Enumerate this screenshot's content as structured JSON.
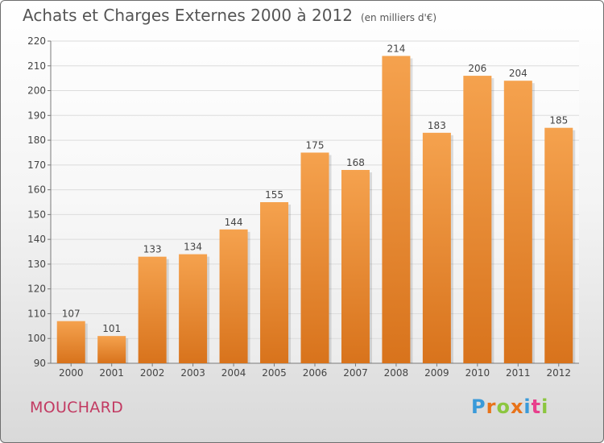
{
  "title": "Achats et Charges Externes 2000 à 2012",
  "unit": "(en milliers d'€)",
  "commune": "MOUCHARD",
  "logo": {
    "letters": [
      "P",
      "r",
      "o",
      "x",
      "i",
      "t",
      "i"
    ],
    "colors": [
      "#3a9ad9",
      "#e8731a",
      "#8cc63f",
      "#e8731a",
      "#3a9ad9",
      "#e83f8c",
      "#8cc63f"
    ]
  },
  "colors": {
    "bar_top": "#f5a24e",
    "bar_bottom": "#d8731c",
    "grid": "#dcdcdc",
    "axis": "#7a7a7a",
    "text": "#444444"
  },
  "chart_data": {
    "type": "bar",
    "title": "Achats et Charges Externes 2000 à 2012",
    "ylabel": "",
    "xlabel": "",
    "categories": [
      "2000",
      "2001",
      "2002",
      "2003",
      "2004",
      "2005",
      "2006",
      "2007",
      "2008",
      "2009",
      "2010",
      "2011",
      "2012"
    ],
    "values": [
      107,
      101,
      133,
      134,
      144,
      155,
      175,
      168,
      214,
      183,
      206,
      204,
      185
    ],
    "ylim": [
      90,
      220
    ],
    "yticks": [
      90,
      100,
      110,
      120,
      130,
      140,
      150,
      160,
      170,
      180,
      190,
      200,
      210,
      220
    ],
    "grid": true,
    "data_labels": true
  }
}
